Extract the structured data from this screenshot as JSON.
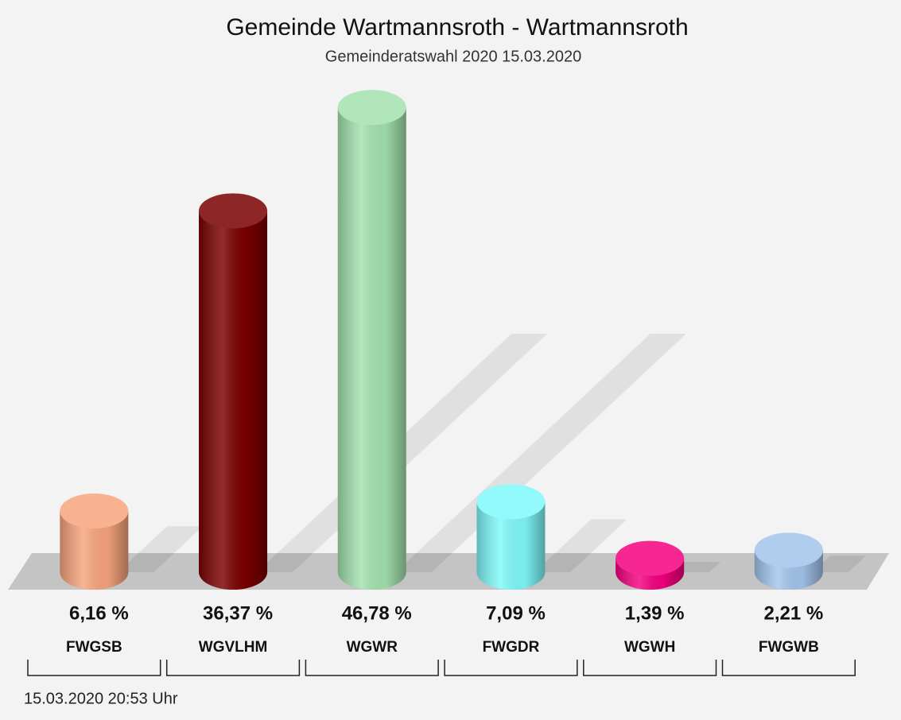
{
  "chart_data": {
    "type": "bar",
    "title": "Gemeinde Wartmannsroth - Wartmannsroth",
    "subtitle": "Gemeinderatswahl 2020 15.03.2020",
    "footer": "15.03.2020 20:53 Uhr",
    "categories": [
      "FWGSB",
      "WGVLHM",
      "WGWR",
      "FWGDR",
      "WGWH",
      "FWGWB"
    ],
    "values": [
      6.16,
      36.37,
      46.78,
      7.09,
      1.39,
      2.21
    ],
    "value_labels": [
      "6,16 %",
      "36,37 %",
      "46,78 %",
      "7,09 %",
      "1,39 %",
      "2,21 %"
    ],
    "colors": [
      "#f7a57d",
      "#7a0000",
      "#a3e2ae",
      "#7ff9f9",
      "#f5007f",
      "#a3c5ec"
    ]
  }
}
